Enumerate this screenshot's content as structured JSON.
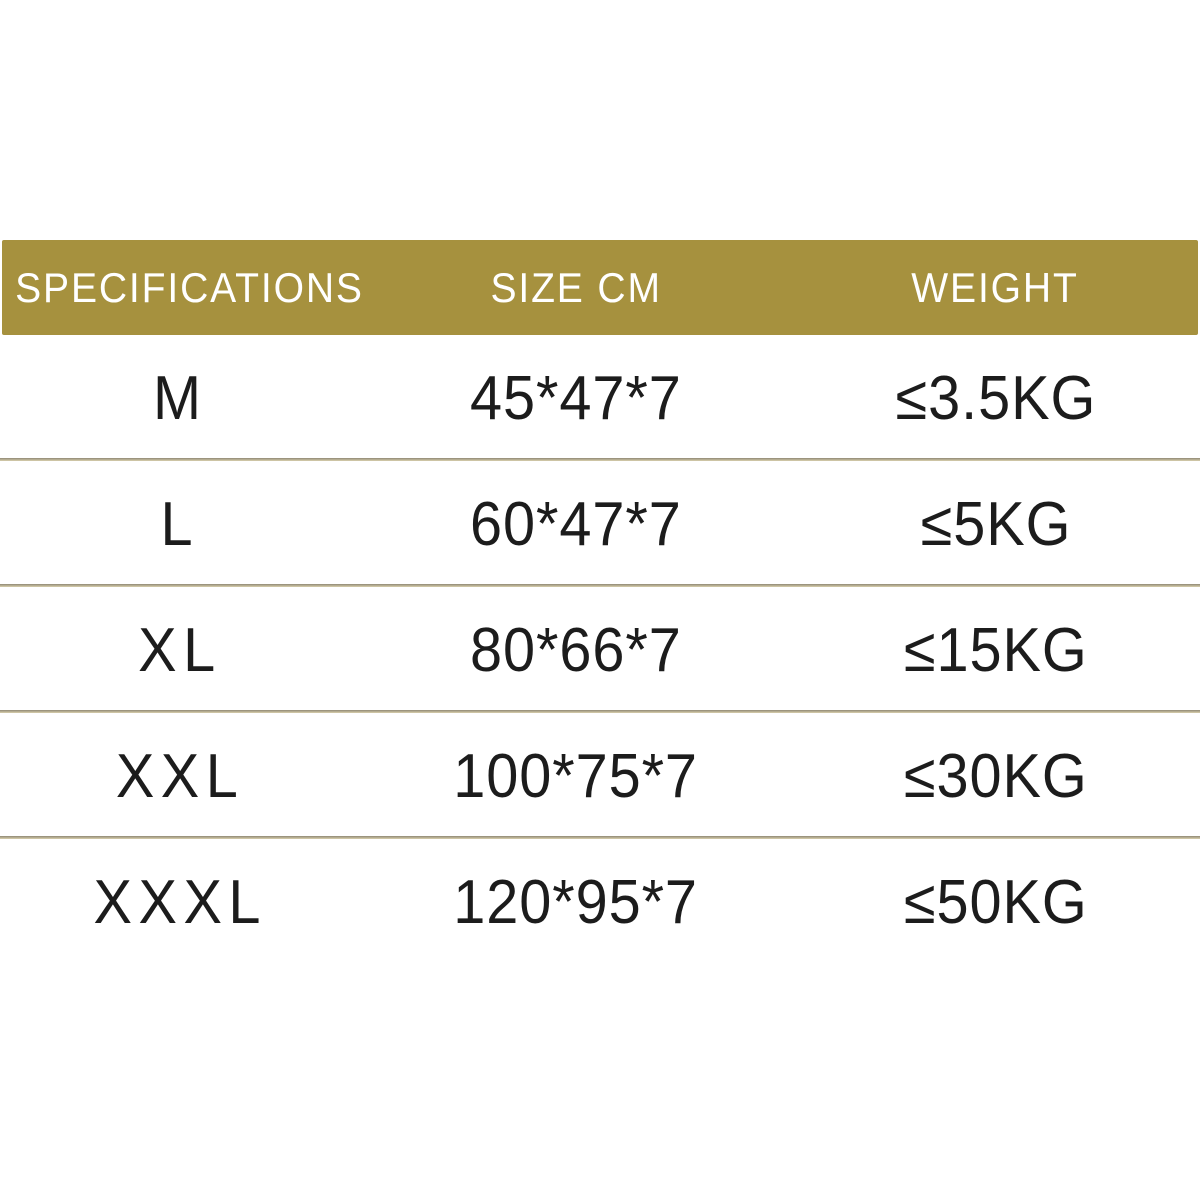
{
  "theme": {
    "background": "#ffffff",
    "header_bg": "#a6913e",
    "header_text": "#ffffff",
    "body_text": "#1c1c1c",
    "separator_top": "#8f8874",
    "separator_bottom": "#d9d0ae"
  },
  "table": {
    "header": {
      "specifications": "SPECIFICATIONS",
      "size_cm": "SIZE CM",
      "weight": "WEIGHT"
    },
    "rows": [
      {
        "specification": "M",
        "size_cm": "45*47*7",
        "weight": "≤3.5KG"
      },
      {
        "specification": "L",
        "size_cm": "60*47*7",
        "weight": "≤5KG"
      },
      {
        "specification": "XL",
        "size_cm": "80*66*7",
        "weight": "≤15KG"
      },
      {
        "specification": "XXL",
        "size_cm": "100*75*7",
        "weight": "≤30KG"
      },
      {
        "specification": "XXXL",
        "size_cm": "120*95*7",
        "weight": "≤50KG"
      }
    ]
  },
  "chart_data": {
    "type": "table",
    "title": "",
    "columns": [
      "SPECIFICATIONS",
      "SIZE CM",
      "WEIGHT"
    ],
    "rows": [
      [
        "M",
        "45*47*7",
        "≤3.5KG"
      ],
      [
        "L",
        "60*47*7",
        "≤5KG"
      ],
      [
        "XL",
        "80*66*7",
        "≤15KG"
      ],
      [
        "XXL",
        "100*75*7",
        "≤30KG"
      ],
      [
        "XXXL",
        "120*95*7",
        "≤50KG"
      ]
    ]
  }
}
